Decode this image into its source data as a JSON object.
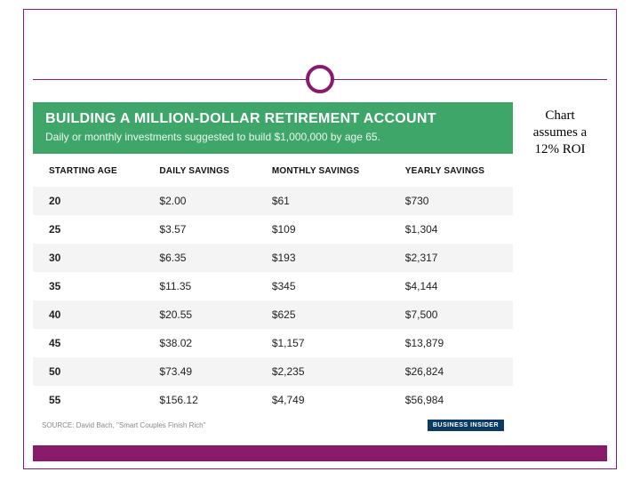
{
  "note": {
    "line1": "Chart",
    "line2": "assumes a",
    "line3": "12% ROI"
  },
  "banner": {
    "title": "BUILDING A MILLION-DOLLAR RETIREMENT ACCOUNT",
    "subtitle": "Daily or monthly investments suggested to build $1,000,000 by age 65.",
    "bg_color": "#3fa66a",
    "title_color": "#ffffff",
    "subtitle_color": "#eafaf0",
    "title_fontsize": 16,
    "subtitle_fontsize": 12
  },
  "table": {
    "type": "table",
    "columns": [
      "STARTING AGE",
      "DAILY SAVINGS",
      "MONTHLY SAVINGS",
      "YEARLY SAVINGS"
    ],
    "header_fontsize": 10,
    "cell_fontsize": 12,
    "alt_row_bg": "#f4f4f4",
    "row_bg": "#ffffff",
    "text_color": "#222222",
    "rows": [
      {
        "age": "20",
        "daily": "$2.00",
        "monthly": "$61",
        "yearly": "$730"
      },
      {
        "age": "25",
        "daily": "$3.57",
        "monthly": "$109",
        "yearly": "$1,304"
      },
      {
        "age": "30",
        "daily": "$6.35",
        "monthly": "$193",
        "yearly": "$2,317"
      },
      {
        "age": "35",
        "daily": "$11.35",
        "monthly": "$345",
        "yearly": "$4,144"
      },
      {
        "age": "40",
        "daily": "$20.55",
        "monthly": "$625",
        "yearly": "$7,500"
      },
      {
        "age": "45",
        "daily": "$38.02",
        "monthly": "$1,157",
        "yearly": "$13,879"
      },
      {
        "age": "50",
        "daily": "$73.49",
        "monthly": "$2,235",
        "yearly": "$26,824"
      },
      {
        "age": "55",
        "daily": "$156.12",
        "monthly": "$4,749",
        "yearly": "$56,984"
      }
    ]
  },
  "footer": {
    "source": "SOURCE: David Bach, \"Smart Couples Finish Rich\"",
    "badge": "BUSINESS INSIDER",
    "badge_bg": "#0b3a63"
  },
  "frame": {
    "border_color": "#8a1a6a",
    "accent_bar_color": "#8a1a6a"
  }
}
